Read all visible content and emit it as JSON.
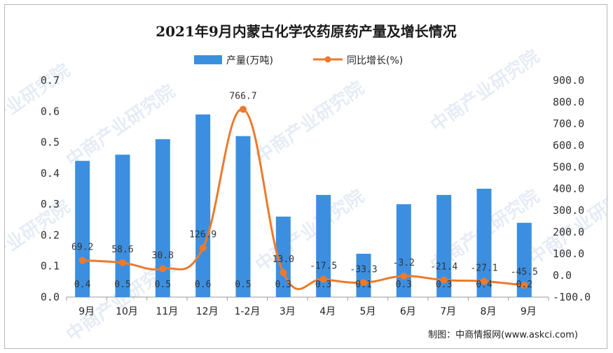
{
  "chart_data": {
    "type": "bar",
    "title": "2021年9月内蒙古化学农药原药产量及增长情况",
    "categories": [
      "9月",
      "10月",
      "11月",
      "12月",
      "1-2月",
      "3月",
      "4月",
      "5月",
      "6月",
      "7月",
      "8月",
      "9月"
    ],
    "series": [
      {
        "name": "产量(万吨)",
        "type": "bar",
        "axis": "left",
        "color": "#3c8fe0",
        "values": [
          0.44,
          0.46,
          0.51,
          0.59,
          0.52,
          0.26,
          0.33,
          0.14,
          0.3,
          0.33,
          0.35,
          0.24
        ],
        "labels": [
          "0.4",
          "0.5",
          "0.5",
          "0.6",
          "0.5",
          "0.3",
          "0.3",
          "0.1",
          "0.3",
          "0.3",
          "0.4",
          "0.2"
        ]
      },
      {
        "name": "同比增长(%)",
        "type": "line",
        "axis": "right",
        "color": "#ec7a2c",
        "values": [
          69.2,
          58.6,
          30.8,
          126.9,
          766.7,
          13.0,
          -17.5,
          -33.3,
          -3.2,
          -21.4,
          -27.1,
          -45.5
        ],
        "labels": [
          "69.2",
          "58.6",
          "30.8",
          "126.9",
          "766.7",
          "13.0",
          "-17.5",
          "-33.3",
          "-3.2",
          "-21.4",
          "-27.1",
          "-45.5"
        ]
      }
    ],
    "y_left": {
      "range": [
        0,
        0.7
      ],
      "ticks": [
        "0.0",
        "0.1",
        "0.2",
        "0.3",
        "0.4",
        "0.5",
        "0.6",
        "0.7"
      ]
    },
    "y_right": {
      "range": [
        -100,
        900
      ],
      "ticks": [
        "-100.0",
        "0.0",
        "100.0",
        "200.0",
        "300.0",
        "400.0",
        "500.0",
        "600.0",
        "700.0",
        "800.0",
        "900.0"
      ]
    },
    "legend_position": "top-center",
    "grid": false
  },
  "source": "制图：中商情报网(www.askci.com)",
  "watermark": "中商产业研究院"
}
